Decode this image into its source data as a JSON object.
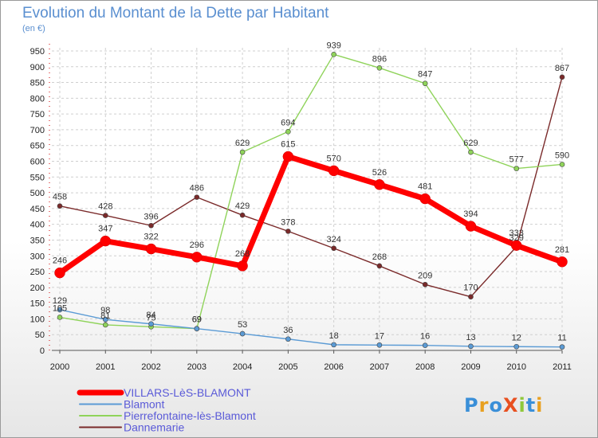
{
  "chart_data": {
    "type": "line",
    "title": "Evolution du Montant de la Dette par Habitant",
    "subtitle": "(en €)",
    "x": [
      "2000",
      "2001",
      "2002",
      "2003",
      "2004",
      "2005",
      "2006",
      "2007",
      "2008",
      "2009",
      "2010",
      "2011"
    ],
    "y_ticks": [
      0,
      50,
      100,
      150,
      200,
      250,
      300,
      350,
      400,
      450,
      500,
      550,
      600,
      650,
      700,
      750,
      800,
      850,
      900,
      950
    ],
    "ylim": [
      0,
      960
    ],
    "grid": true,
    "legend_position": "bottom-left",
    "series": [
      {
        "name": "VILLARS-LèS-BLAMONT",
        "color": "#ff0000",
        "values": [
          246,
          347,
          322,
          296,
          268,
          615,
          570,
          526,
          481,
          394,
          333,
          281
        ]
      },
      {
        "name": "Blamont",
        "color": "#5b9bd5",
        "values": [
          129,
          98,
          84,
          69,
          53,
          36,
          18,
          17,
          16,
          13,
          12,
          11
        ]
      },
      {
        "name": "Pierrefontaine-lès-Blamont",
        "color": "#8fd35a",
        "values": [
          105,
          81,
          75,
          69,
          629,
          694,
          939,
          896,
          847,
          629,
          577,
          590
        ]
      },
      {
        "name": "Dannemarie",
        "color": "#7a2a2a",
        "values": [
          458,
          428,
          396,
          486,
          429,
          378,
          324,
          268,
          209,
          170,
          329,
          867
        ]
      }
    ]
  },
  "logo_text": "ProXiti"
}
